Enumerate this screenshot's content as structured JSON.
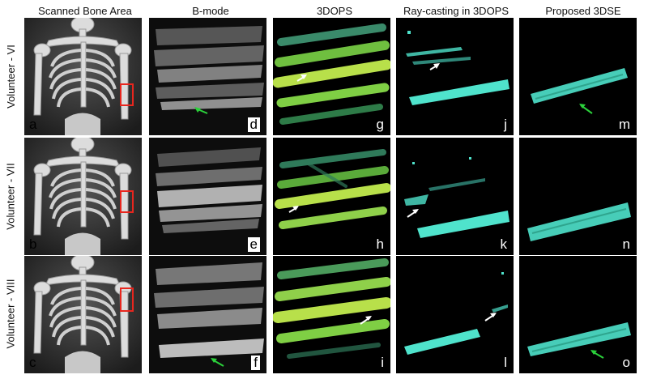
{
  "columns": [
    "Scanned Bone Area",
    "B-mode",
    "3DOPS",
    "Ray-casting in 3DOPS",
    "Proposed 3DSE"
  ],
  "rows": [
    "Volunteer - VI",
    "Volunteer - VII",
    "Volunteer - VIII"
  ],
  "panel_labels": [
    [
      "a",
      "d",
      "g",
      "j",
      "m"
    ],
    [
      "b",
      "e",
      "h",
      "k",
      "n"
    ],
    [
      "c",
      "f",
      "i",
      "l",
      "o"
    ]
  ],
  "colors": {
    "highlight_box": "#e8261e",
    "green_arrow": "#2bd13b",
    "white_arrow": "#ffffff",
    "cyan_bone": "#4fe3cc",
    "yellow_green": "#b8e04a"
  }
}
